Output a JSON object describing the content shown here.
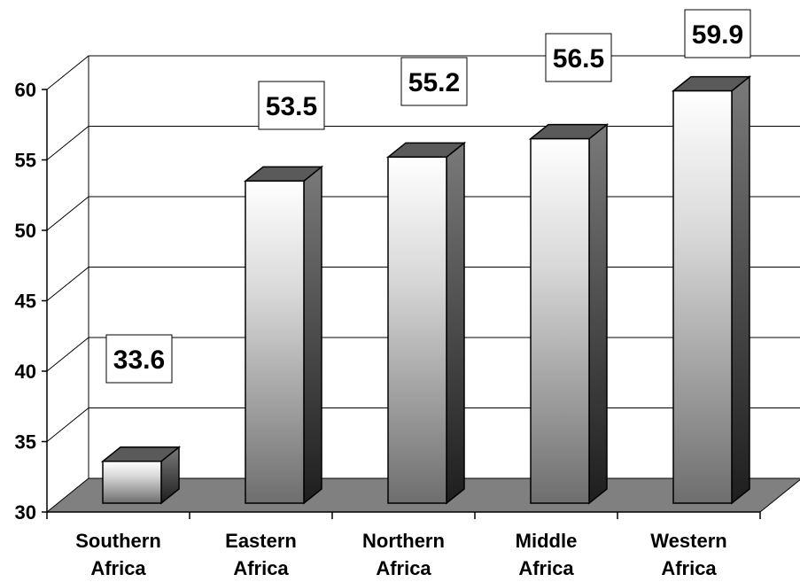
{
  "chart_data": {
    "type": "bar",
    "categories": [
      [
        "Southern",
        "Africa"
      ],
      [
        "Eastern",
        "Africa"
      ],
      [
        "Northern",
        "Africa"
      ],
      [
        "Middle",
        "Africa"
      ],
      [
        "Western",
        "Africa"
      ]
    ],
    "values": [
      33.6,
      53.5,
      55.2,
      56.5,
      59.9
    ],
    "value_labels": [
      "33.6",
      "53.5",
      "55.2",
      "56.5",
      "59.9"
    ],
    "y_ticks": [
      "30",
      "35",
      "40",
      "45",
      "50",
      "55",
      "60"
    ],
    "ylim": [
      30,
      60
    ],
    "grid": true,
    "style": "3d-gradient-bars",
    "colors": {
      "floor": "#808080",
      "bar_light": "#ffffff",
      "bar_dark": "#6e6e6e",
      "bar_top": "#5a5a5a",
      "bar_side": "#4a4a4a",
      "label_box": "#ffffff",
      "axis": "#000000"
    }
  }
}
